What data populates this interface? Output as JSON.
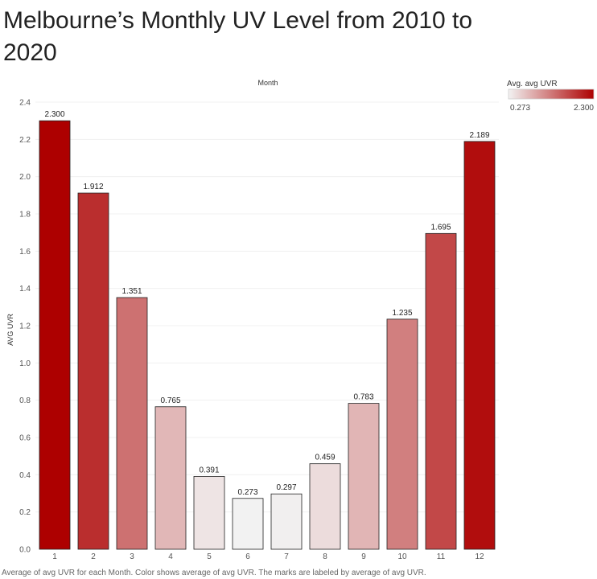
{
  "title": "Melbourne’s Monthly UV Level from 2010 to 2020",
  "footnote": "Average of avg UVR for each Month.  Color shows average of avg UVR.  The marks are labeled by average of avg UVR.",
  "chart_data": {
    "type": "bar",
    "column_header": "Month",
    "xlabel": "",
    "ylabel": "AVG UVR",
    "categories": [
      "1",
      "2",
      "3",
      "4",
      "5",
      "6",
      "7",
      "8",
      "9",
      "10",
      "11",
      "12"
    ],
    "values": [
      2.3,
      1.912,
      1.351,
      0.765,
      0.391,
      0.273,
      0.297,
      0.459,
      0.783,
      1.235,
      1.695,
      2.189
    ],
    "value_labels": [
      "2.300",
      "1.912",
      "1.351",
      "0.765",
      "0.391",
      "0.273",
      "0.297",
      "0.459",
      "0.783",
      "1.235",
      "1.695",
      "2.189"
    ],
    "ylim": [
      0,
      2.4
    ],
    "yticks": [
      "0.0",
      "0.2",
      "0.4",
      "0.6",
      "0.8",
      "1.0",
      "1.2",
      "1.4",
      "1.6",
      "1.8",
      "2.0",
      "2.2",
      "2.4"
    ],
    "grid": true,
    "legend": {
      "title": "Avg. avg UVR",
      "min_label": "0.273",
      "max_label": "2.300",
      "min": 0.273,
      "max": 2.3,
      "placement": "top-right",
      "color_low": "#f2f2f2",
      "color_high": "#ad0000"
    }
  }
}
